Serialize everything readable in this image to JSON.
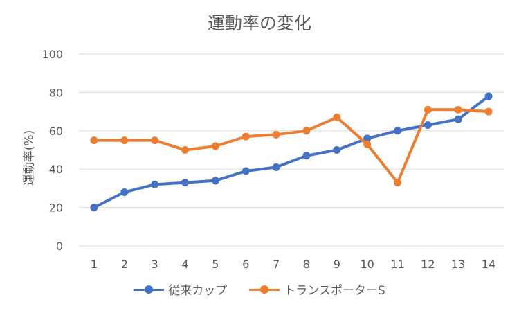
{
  "chart_data": {
    "type": "line",
    "title": "運動率の変化",
    "xlabel": "",
    "ylabel": "運動率(%)",
    "ylim": [
      0,
      100
    ],
    "yticks": [
      0,
      20,
      40,
      60,
      80,
      100
    ],
    "categories": [
      "1",
      "2",
      "3",
      "4",
      "5",
      "6",
      "7",
      "8",
      "9",
      "10",
      "11",
      "12",
      "13",
      "14"
    ],
    "grid": true,
    "legend_position": "bottom",
    "series": [
      {
        "name": "従来カップ",
        "color": "#4472C4",
        "values": [
          20,
          28,
          32,
          33,
          34,
          39,
          41,
          47,
          50,
          56,
          60,
          63,
          66,
          78
        ]
      },
      {
        "name": "トランスポーターS",
        "color": "#ED7D31",
        "values": [
          55,
          55,
          55,
          50,
          52,
          57,
          58,
          60,
          67,
          53,
          33,
          71,
          71,
          70
        ]
      }
    ]
  }
}
